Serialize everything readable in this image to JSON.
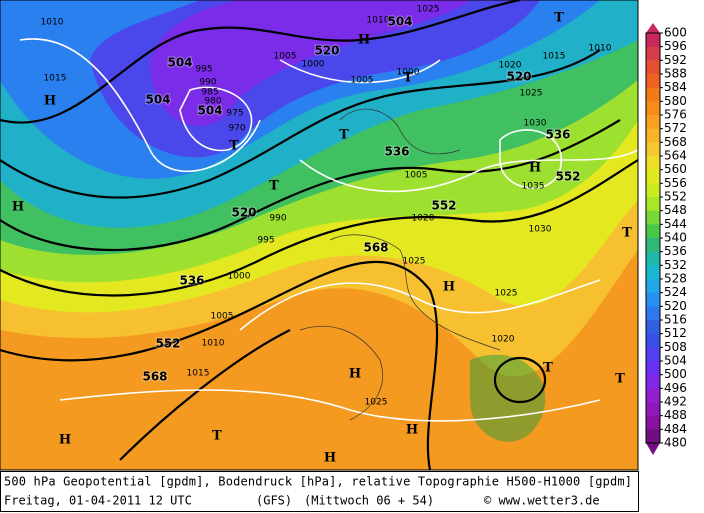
{
  "map": {
    "contour_labels": [
      "504",
      "504",
      "504",
      "504",
      "520",
      "520",
      "520",
      "536",
      "536",
      "536",
      "552",
      "552",
      "552",
      "568",
      "568"
    ],
    "pressure_labels": [
      "1010",
      "1015",
      "1005",
      "1000",
      "1005",
      "1000",
      "1010",
      "1025",
      "1015",
      "1020",
      "1025",
      "1030",
      "1035",
      "1030",
      "1005",
      "1020",
      "1025",
      "1025",
      "1020",
      "1000",
      "1005",
      "1010",
      "1015",
      "1025",
      "995",
      "990",
      "985",
      "980",
      "975",
      "970",
      "995",
      "990",
      "1010"
    ],
    "centers": [
      "H",
      "H",
      "H",
      "H",
      "H",
      "H",
      "H",
      "H",
      "H",
      "T",
      "T",
      "T",
      "T",
      "T",
      "T",
      "T",
      "T",
      "T"
    ]
  },
  "colorbar": {
    "ticks": [
      600,
      596,
      592,
      588,
      584,
      580,
      576,
      572,
      568,
      564,
      560,
      556,
      552,
      548,
      544,
      540,
      536,
      532,
      528,
      524,
      520,
      516,
      512,
      508,
      504,
      500,
      496,
      492,
      488,
      484,
      480
    ],
    "colors": [
      "#c8285a",
      "#d83c4a",
      "#e65030",
      "#f06020",
      "#f47a18",
      "#f78c1a",
      "#f9a020",
      "#f9b428",
      "#f5c830",
      "#eede28",
      "#e0ea20",
      "#c8ee20",
      "#a8e628",
      "#78d838",
      "#48c848",
      "#30b878",
      "#20b8a8",
      "#18b8d0",
      "#20a8e8",
      "#2890f0",
      "#3078f0",
      "#3060e0",
      "#3850e8",
      "#5040f0",
      "#6830f0",
      "#8028e8",
      "#9020d0",
      "#9018b8",
      "#8a10a0",
      "#701080"
    ]
  },
  "footer": {
    "line1": "500 hPa Geopotential [gpdm], Bodendruck [hPa], relative Topographie H500-H1000 [gpdm]",
    "date": "Freitag, 01-04-2011  12 UTC",
    "model": "(GFS)",
    "run": "(Mittwoch 06 + 54)",
    "source": "© www.wetter3.de"
  }
}
